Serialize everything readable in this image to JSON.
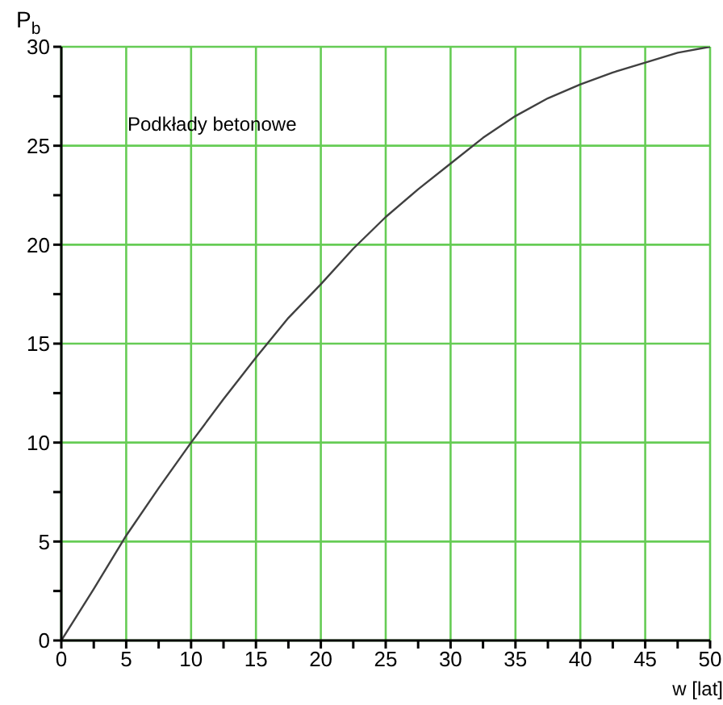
{
  "chart_data": {
    "type": "line",
    "xlabel": "w [lat]",
    "ylabel": "P$_{b}$",
    "annotations": [
      "Podkłady betonowe"
    ],
    "x": [
      0,
      2.5,
      5,
      7.5,
      10,
      12.5,
      15,
      17.5,
      20,
      22.5,
      25,
      27.5,
      30,
      32.5,
      35,
      37.5,
      40,
      42.5,
      45,
      47.5,
      50
    ],
    "series": [
      {
        "color": "#404040",
        "values": [
          0,
          2.6,
          5.3,
          7.7,
          10,
          12.2,
          14.3,
          16.3,
          18.0,
          19.8,
          21.4,
          22.8,
          24.1,
          25.4,
          26.5,
          27.4,
          28.1,
          28.7,
          29.2,
          29.7,
          30
        ]
      }
    ],
    "xlim": [
      0,
      50
    ],
    "ylim": [
      0,
      30
    ],
    "xticks": [
      0,
      {
        "value": 2.5,
        "label": null
      },
      5,
      {
        "value": 7.5,
        "label": null
      },
      10,
      {
        "value": 12.5,
        "label": null
      },
      15,
      {
        "value": 17.5,
        "label": null
      },
      20,
      {
        "value": 22.5,
        "label": null
      },
      25,
      {
        "value": 27.5,
        "label": null
      },
      30,
      {
        "value": 32.5,
        "label": null
      },
      35,
      {
        "value": 37.5,
        "label": null
      },
      40,
      {
        "value": 42.5,
        "label": null
      },
      45,
      {
        "value": 47.5,
        "label": null
      },
      50
    ],
    "yticks": [
      0,
      {
        "value": 2.5,
        "label": null
      },
      5,
      {
        "value": 7.5,
        "label": null
      },
      10,
      {
        "value": 12.5,
        "label": null
      },
      15,
      {
        "value": 17.5,
        "label": null
      },
      20,
      {
        "value": 22.5,
        "label": null
      },
      25,
      {
        "value": 27.5,
        "label": null
      },
      30
    ],
    "grid": true,
    "legend": false,
    "marker": "none",
    "line_style": "solid"
  }
}
